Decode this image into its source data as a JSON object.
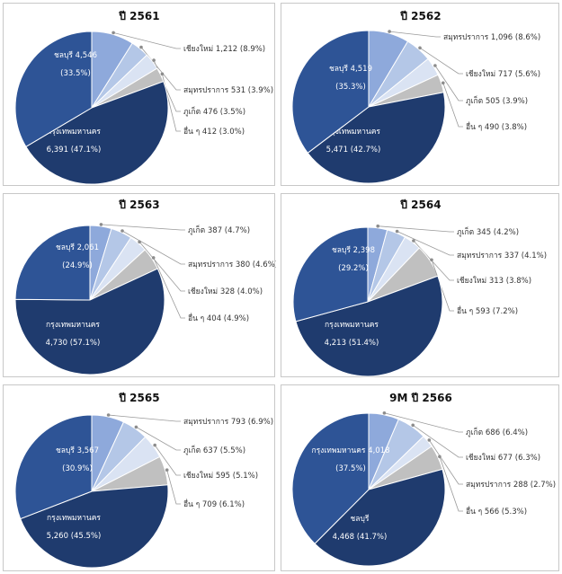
{
  "colors": {
    "bangkok": "#1f3b6e",
    "chonburi": "#2e5496",
    "c3": "#8ea9db",
    "c4": "#b4c7e7",
    "c5": "#dae3f3",
    "others": "#c0c0c0"
  },
  "chart_data": [
    {
      "type": "pie",
      "title": "ปี 2561",
      "slices": [
        {
          "name": "เชียงใหม่",
          "value": 1212,
          "pct": "8.9%",
          "color": "c3",
          "label": "เชียงใหม่ 1,212 (8.9%)"
        },
        {
          "name": "สมุทรปราการ",
          "value": 531,
          "pct": "3.9%",
          "color": "c4",
          "label": "สมุทรปราการ 531 (3.9%)"
        },
        {
          "name": "ภูเก็ต",
          "value": 476,
          "pct": "3.5%",
          "color": "c5",
          "label": "ภูเก็ต 476 (3.5%)"
        },
        {
          "name": "อื่น ๆ",
          "value": 412,
          "pct": "3.0%",
          "color": "others",
          "label": "อื่น ๆ 412 (3.0%)"
        },
        {
          "name": "กรุงเทพมหานคร",
          "value": 6391,
          "pct": "47.1%",
          "color": "bangkok",
          "line1": "กรุงเทพมหานคร",
          "line2": "6,391 (47.1%)"
        },
        {
          "name": "ชลบุรี",
          "value": 4546,
          "pct": "33.5%",
          "color": "chonburi",
          "line1": "ชลบุรี 4,546",
          "line2": "(33.5%)"
        }
      ]
    },
    {
      "type": "pie",
      "title": "ปี 2562",
      "slices": [
        {
          "name": "สมุทรปราการ",
          "value": 1096,
          "pct": "8.6%",
          "color": "c3",
          "label": "สมุทรปราการ 1,096 (8.6%)"
        },
        {
          "name": "เชียงใหม่",
          "value": 717,
          "pct": "5.6%",
          "color": "c4",
          "label": "เชียงใหม่ 717 (5.6%)"
        },
        {
          "name": "ภูเก็ต",
          "value": 505,
          "pct": "3.9%",
          "color": "c5",
          "label": "ภูเก็ต 505 (3.9%)"
        },
        {
          "name": "อื่น ๆ",
          "value": 490,
          "pct": "3.8%",
          "color": "others",
          "label": "อื่น ๆ 490 (3.8%)"
        },
        {
          "name": "กรุงเทพมหานคร",
          "value": 5471,
          "pct": "42.7%",
          "color": "bangkok",
          "line1": "กรุงเทพมหานคร",
          "line2": "5,471 (42.7%)"
        },
        {
          "name": "ชลบุรี",
          "value": 4519,
          "pct": "35.3%",
          "color": "chonburi",
          "line1": "ชลบุรี 4,519",
          "line2": "(35.3%)"
        }
      ]
    },
    {
      "type": "pie",
      "title": "ปี 2563",
      "slices": [
        {
          "name": "ภูเก็ต",
          "value": 387,
          "pct": "4.7%",
          "color": "c3",
          "label": "ภูเก็ต 387 (4.7%)"
        },
        {
          "name": "สมุทรปราการ",
          "value": 380,
          "pct": "4.6%",
          "color": "c4",
          "label": "สมุทรปราการ 380 (4.6%)"
        },
        {
          "name": "เชียงใหม่",
          "value": 328,
          "pct": "4.0%",
          "color": "c5",
          "label": "เชียงใหม่ 328 (4.0%)"
        },
        {
          "name": "อื่น ๆ",
          "value": 404,
          "pct": "4.9%",
          "color": "others",
          "label": "อื่น ๆ 404 (4.9%)"
        },
        {
          "name": "กรุงเทพมหานคร",
          "value": 4730,
          "pct": "57.1%",
          "color": "bangkok",
          "line1": "กรุงเทพมหานคร",
          "line2": "4,730 (57.1%)"
        },
        {
          "name": "ชลบุรี",
          "value": 2061,
          "pct": "24.9%",
          "color": "chonburi",
          "line1": "ชลบุรี 2,061",
          "line2": "(24.9%)"
        }
      ]
    },
    {
      "type": "pie",
      "title": "ปี 2564",
      "slices": [
        {
          "name": "ภูเก็ต",
          "value": 345,
          "pct": "4.2%",
          "color": "c3",
          "label": "ภูเก็ต 345 (4.2%)"
        },
        {
          "name": "สมุทรปราการ",
          "value": 337,
          "pct": "4.1%",
          "color": "c4",
          "label": "สมุทรปราการ 337 (4.1%)"
        },
        {
          "name": "เชียงใหม่",
          "value": 313,
          "pct": "3.8%",
          "color": "c5",
          "label": "เชียงใหม่ 313 (3.8%)"
        },
        {
          "name": "อื่น ๆ",
          "value": 593,
          "pct": "7.2%",
          "color": "others",
          "label": "อื่น ๆ 593 (7.2%)"
        },
        {
          "name": "กรุงเทพมหานคร",
          "value": 4213,
          "pct": "51.4%",
          "color": "bangkok",
          "line1": "กรุงเทพมหานคร",
          "line2": "4,213 (51.4%)"
        },
        {
          "name": "ชลบุรี",
          "value": 2398,
          "pct": "29.2%",
          "color": "chonburi",
          "line1": "ชลบุรี 2,398",
          "line2": "(29.2%)"
        }
      ]
    },
    {
      "type": "pie",
      "title": "ปี 2565",
      "slices": [
        {
          "name": "สมุทรปราการ",
          "value": 793,
          "pct": "6.9%",
          "color": "c3",
          "label": "สมุทรปราการ 793 (6.9%)"
        },
        {
          "name": "ภูเก็ต",
          "value": 637,
          "pct": "5.5%",
          "color": "c4",
          "label": "ภูเก็ต 637 (5.5%)"
        },
        {
          "name": "เชียงใหม่",
          "value": 595,
          "pct": "5.1%",
          "color": "c5",
          "label": "เชียงใหม่ 595 (5.1%)"
        },
        {
          "name": "อื่น ๆ",
          "value": 709,
          "pct": "6.1%",
          "color": "others",
          "label": "อื่น ๆ 709 (6.1%)"
        },
        {
          "name": "กรุงเทพมหานคร",
          "value": 5260,
          "pct": "45.5%",
          "color": "bangkok",
          "line1": "กรุงเทพมหานคร",
          "line2": "5,260 (45.5%)"
        },
        {
          "name": "ชลบุรี",
          "value": 3567,
          "pct": "30.9%",
          "color": "chonburi",
          "line1": "ชลบุรี 3,567",
          "line2": "(30.9%)"
        }
      ]
    },
    {
      "type": "pie",
      "title": "9M ปี 2566",
      "slices": [
        {
          "name": "ภูเก็ต",
          "value": 686,
          "pct": "6.4%",
          "color": "c3",
          "label": "ภูเก็ต 686 (6.4%)"
        },
        {
          "name": "เชียงใหม่",
          "value": 677,
          "pct": "6.3%",
          "color": "c4",
          "label": "เชียงใหม่ 677 (6.3%)"
        },
        {
          "name": "สมุทรปราการ",
          "value": 288,
          "pct": "2.7%",
          "color": "c5",
          "label": "สมุทรปราการ 288 (2.7%)"
        },
        {
          "name": "อื่น ๆ",
          "value": 566,
          "pct": "5.3%",
          "color": "others",
          "label": "อื่น ๆ 566 (5.3%)"
        },
        {
          "name": "ชลบุรี",
          "value": 4468,
          "pct": "41.7%",
          "color": "bangkok",
          "line1": "ชลบุรี",
          "line2": "4,468 (41.7%)"
        },
        {
          "name": "กรุงเทพมหานคร",
          "value": 4018,
          "pct": "37.5%",
          "color": "chonburi",
          "line1": "กรุงเทพมหานคร 4,018",
          "line2": "(37.5%)"
        }
      ]
    }
  ]
}
